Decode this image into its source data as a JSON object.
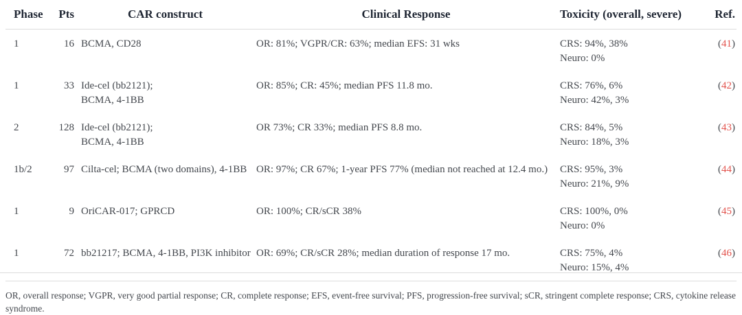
{
  "colors": {
    "header_text": "#1f2633",
    "body_text": "#43474d",
    "ref_accent": "#e2534d",
    "rule": "#dcdcdc",
    "page_bg": "#ffffff"
  },
  "table": {
    "columns": [
      {
        "key": "phase",
        "label": "Phase"
      },
      {
        "key": "pts",
        "label": "Pts"
      },
      {
        "key": "construct",
        "label": "CAR construct"
      },
      {
        "key": "response",
        "label": "Clinical Response"
      },
      {
        "key": "toxicity",
        "label": "Toxicity (overall, severe)"
      },
      {
        "key": "ref",
        "label": "Ref."
      }
    ],
    "ref_paren_open": "(",
    "ref_paren_close": ")",
    "rows": [
      {
        "phase": "1",
        "pts": "16",
        "construct_lines": [
          "BCMA, CD28"
        ],
        "response": "OR: 81%; VGPR/CR: 63%; median EFS: 31 wks",
        "toxicity_lines": [
          "CRS: 94%, 38%",
          "Neuro: 0%"
        ],
        "ref": "41"
      },
      {
        "phase": "1",
        "pts": "33",
        "construct_lines": [
          "Ide-cel (bb2121);",
          "BCMA, 4-1BB"
        ],
        "response": "OR: 85%; CR: 45%; median PFS 11.8 mo.",
        "toxicity_lines": [
          "CRS: 76%, 6%",
          "Neuro: 42%, 3%"
        ],
        "ref": "42"
      },
      {
        "phase": "2",
        "pts": "128",
        "construct_lines": [
          "Ide-cel (bb2121);",
          "BCMA, 4-1BB"
        ],
        "response": "OR 73%; CR 33%; median PFS 8.8 mo.",
        "toxicity_lines": [
          "CRS: 84%, 5%",
          "Neuro: 18%, 3%"
        ],
        "ref": "43"
      },
      {
        "phase": "1b/2",
        "pts": "97",
        "construct_lines": [
          "Cilta-cel; BCMA (two domains), 4-1BB"
        ],
        "response": "OR: 97%; CR 67%; 1-year PFS 77% (median not reached at 12.4 mo.)",
        "toxicity_lines": [
          "CRS: 95%, 3%",
          "Neuro: 21%, 9%"
        ],
        "ref": "44"
      },
      {
        "phase": "1",
        "pts": "9",
        "construct_lines": [
          "OriCAR-017; GPRCD"
        ],
        "response": "OR: 100%; CR/sCR 38%",
        "toxicity_lines": [
          "CRS: 100%, 0%",
          "Neuro: 0%"
        ],
        "ref": "45"
      },
      {
        "phase": "1",
        "pts": "72",
        "construct_lines": [
          "bb21217; BCMA, 4-1BB, PI3K inhibitor"
        ],
        "response": "OR: 69%; CR/sCR 28%; median duration of response 17 mo.",
        "toxicity_lines": [
          "CRS: 75%, 4%",
          "Neuro: 15%, 4%"
        ],
        "ref": "46"
      }
    ]
  },
  "footnote": "OR, overall response; VGPR, very good partial response; CR, complete response; EFS, event-free survival; PFS, progression-free survival; sCR, stringent complete response; CRS, cytokine release syndrome."
}
